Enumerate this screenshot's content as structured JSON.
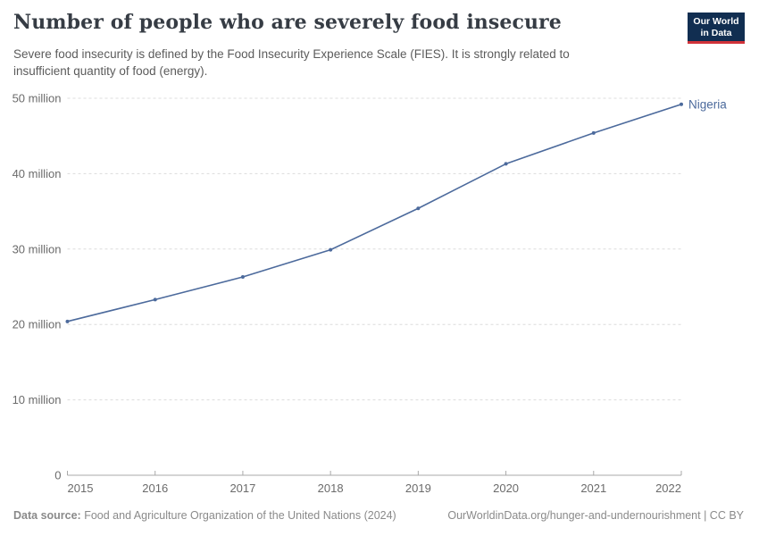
{
  "header": {
    "title": "Number of people who are severely food insecure",
    "subtitle_line1": "Severe food insecurity is defined by the Food Insecurity Experience Scale (FIES). It is strongly related to",
    "subtitle_line2": "insufficient quantity of food (energy)."
  },
  "logo": {
    "line1": "Our World",
    "line2": "in Data",
    "bg_color": "#112e51",
    "bar_color": "#d13239"
  },
  "chart_data": {
    "type": "line",
    "title": "Number of people who are severely food insecure",
    "x": [
      2015,
      2016,
      2017,
      2018,
      2019,
      2020,
      2021,
      2022
    ],
    "series": [
      {
        "name": "Nigeria",
        "color": "#4C6A9C",
        "values": [
          20.4,
          23.3,
          26.3,
          29.9,
          35.4,
          41.3,
          45.4,
          49.2
        ]
      }
    ],
    "unit": "million",
    "ylim": [
      0,
      50
    ],
    "y_ticks": [
      {
        "value": 0,
        "label": "0"
      },
      {
        "value": 10,
        "label": "10 million"
      },
      {
        "value": 20,
        "label": "20 million"
      },
      {
        "value": 30,
        "label": "30 million"
      },
      {
        "value": 40,
        "label": "40 million"
      },
      {
        "value": 50,
        "label": "50 million"
      }
    ],
    "grid": "horizontal-dashed",
    "legend_position": "end-of-line",
    "colors": {
      "grid": "#dcdcdc",
      "axis": "#a9a9a9",
      "tick_text": "#6b6b6b"
    }
  },
  "footer": {
    "source_label": "Data source:",
    "source_text": " Food and Agriculture Organization of the United Nations (2024)",
    "rights": "OurWorldinData.org/hunger-and-undernourishment | CC BY"
  }
}
